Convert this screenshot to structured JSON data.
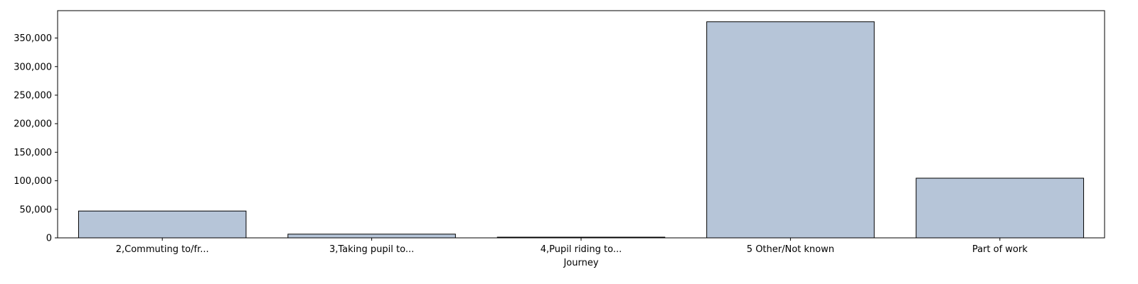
{
  "chart_data": {
    "type": "bar",
    "categories": [
      "2,Commuting to/fr...",
      "3,Taking pupil to...",
      "4,Pupil riding to...",
      "5 Other/Not known",
      "Part of work"
    ],
    "values": [
      47000,
      6500,
      1200,
      378500,
      104500
    ],
    "xlabel": "Journey",
    "ylabel": "",
    "ylim": [
      0,
      398000
    ],
    "yticks": [
      0,
      50000,
      100000,
      150000,
      200000,
      250000,
      300000,
      350000
    ],
    "ytick_labels": [
      "0",
      "50,000",
      "100,000",
      "150,000",
      "200,000",
      "250,000",
      "300,000",
      "350,000"
    ],
    "grid": false,
    "legend": "none",
    "colors": {
      "bar_fill": "#b6c5d8",
      "bar_edge": "#000000",
      "axis": "#000000"
    }
  }
}
